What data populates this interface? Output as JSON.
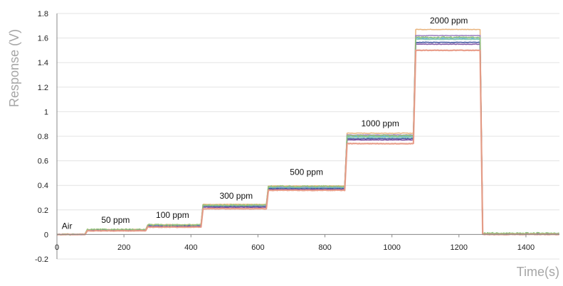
{
  "chart_data": {
    "type": "line",
    "title": "",
    "xlabel": "Time(s)",
    "ylabel": "Response (V)",
    "xlim": [
      0,
      1500
    ],
    "ylim": [
      -0.2,
      1.8
    ],
    "x_ticks": [
      0,
      200,
      400,
      600,
      800,
      1000,
      1200,
      1400
    ],
    "y_ticks": [
      -0.2,
      0,
      0.2,
      0.4,
      0.6,
      0.8,
      1,
      1.2,
      1.4,
      1.6,
      1.8
    ],
    "y_tick_labels": [
      "-0.2",
      "0",
      "0.2",
      "0.4",
      "0.6",
      "0.8",
      "1",
      "1.2",
      "1.4",
      "1.6",
      "1.8"
    ],
    "grid": "horizontal",
    "legend": "none",
    "step_times": [
      0,
      85,
      265,
      430,
      625,
      860,
      1065,
      1265,
      1500
    ],
    "series": [
      {
        "color": "#e8b27a",
        "levels": [
          0.0,
          0.04,
          0.08,
          0.245,
          0.395,
          0.825,
          1.67,
          0.005
        ]
      },
      {
        "color": "#9b7fc0",
        "levels": [
          0.0,
          0.038,
          0.075,
          0.235,
          0.385,
          0.81,
          1.62,
          0.005
        ]
      },
      {
        "color": "#5aa7d8",
        "levels": [
          0.0,
          0.036,
          0.072,
          0.23,
          0.38,
          0.8,
          1.6,
          0.005
        ]
      },
      {
        "color": "#7ec8b0",
        "levels": [
          0.0,
          0.035,
          0.07,
          0.228,
          0.376,
          0.792,
          1.59,
          0.005
        ]
      },
      {
        "color": "#3a4f9c",
        "levels": [
          0.0,
          0.034,
          0.068,
          0.225,
          0.372,
          0.78,
          1.565,
          0.005
        ]
      },
      {
        "color": "#7b4fa0",
        "levels": [
          0.0,
          0.033,
          0.066,
          0.222,
          0.368,
          0.77,
          1.55,
          0.005
        ]
      },
      {
        "color": "#95c57a",
        "levels": [
          0.0,
          0.04,
          0.078,
          0.24,
          0.392,
          0.805,
          1.605,
          0.01
        ]
      },
      {
        "color": "#e89a86",
        "levels": [
          0.0,
          0.03,
          0.06,
          0.21,
          0.36,
          0.74,
          1.5,
          0.0
        ]
      }
    ],
    "annotations": [
      {
        "text": "Air",
        "x": 30,
        "y": 0.045
      },
      {
        "text": "50 ppm",
        "x": 175,
        "y": 0.095
      },
      {
        "text": "100 ppm",
        "x": 345,
        "y": 0.135
      },
      {
        "text": "300 ppm",
        "x": 535,
        "y": 0.29
      },
      {
        "text": "500 ppm",
        "x": 745,
        "y": 0.485
      },
      {
        "text": "1000 ppm",
        "x": 965,
        "y": 0.88
      },
      {
        "text": "2000 ppm",
        "x": 1170,
        "y": 1.72
      }
    ]
  }
}
